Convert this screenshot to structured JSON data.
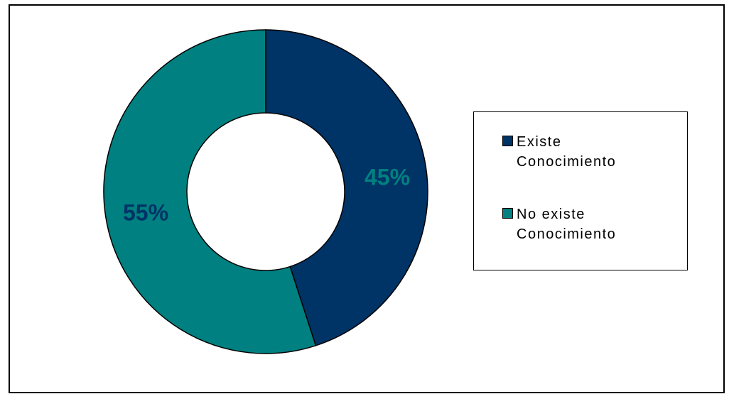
{
  "chart_data": {
    "type": "pie",
    "style": "donut",
    "title": "",
    "categories": [
      "Existe Conocimiento",
      "No existe Conocimiento"
    ],
    "values": [
      45,
      55
    ],
    "data_labels": [
      "45%",
      "55%"
    ],
    "colors": [
      "#003366",
      "#008080"
    ],
    "label_colors": [
      "#008080",
      "#003366"
    ],
    "legend_placement": "right"
  },
  "legend": {
    "items": [
      {
        "label": "Existe\nConocimiento",
        "color": "#003366"
      },
      {
        "label": "No existe\nConocimiento",
        "color": "#008080"
      }
    ]
  }
}
